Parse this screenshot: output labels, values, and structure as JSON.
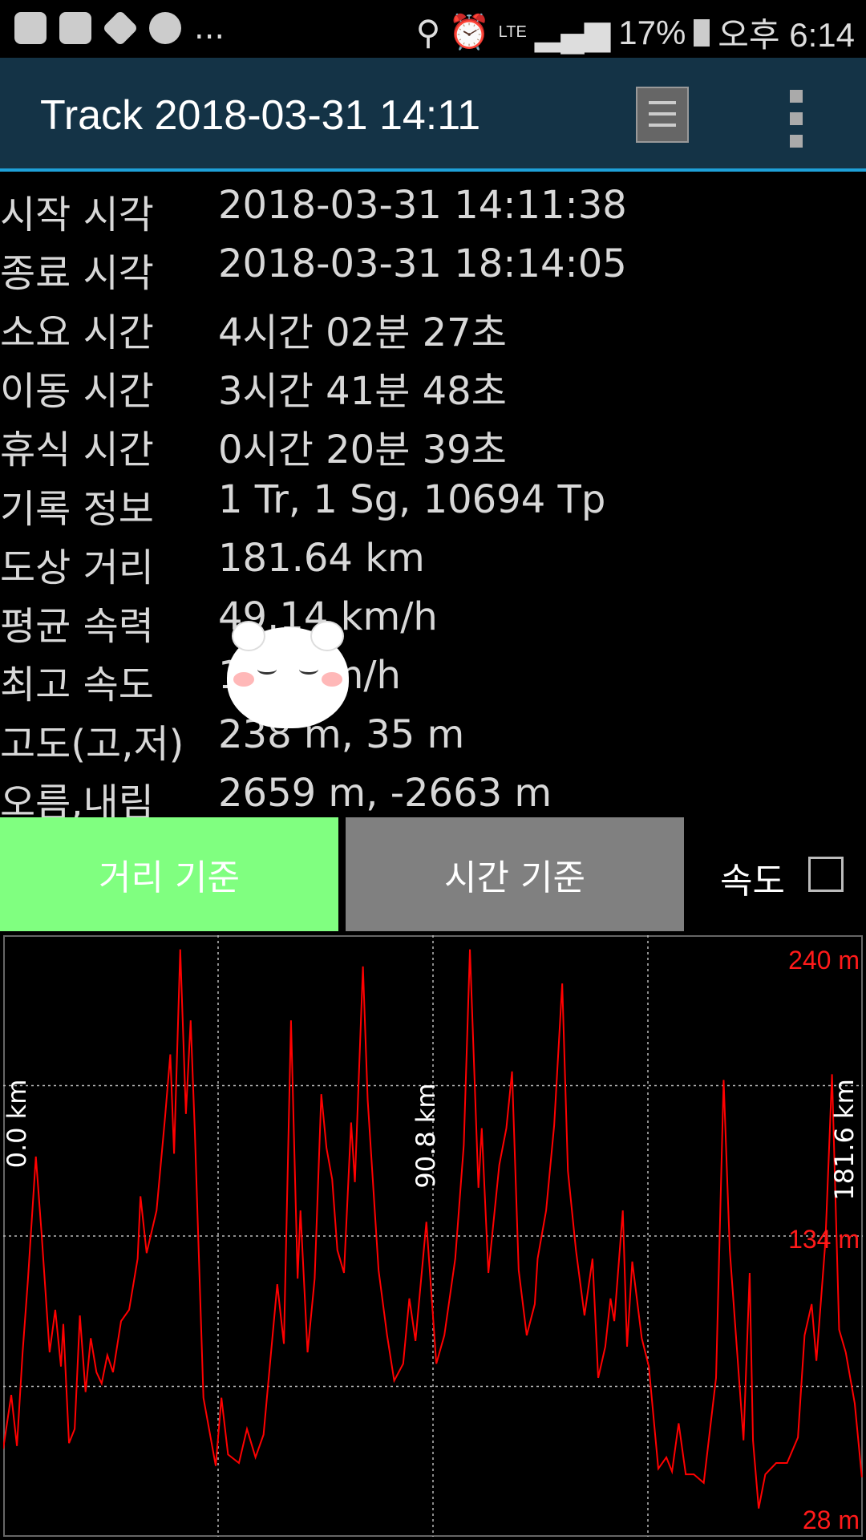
{
  "status_bar": {
    "left_icons": [
      "uplus-icon",
      "gallery-icon",
      "navigation-icon",
      "kakaotalk-icon"
    ],
    "more": "...",
    "right": {
      "network": "LTE",
      "battery": "17%",
      "time": "오후 6:14"
    }
  },
  "app_bar": {
    "title": "Track 2018-03-31 14:11",
    "list_icon": "list-icon",
    "overflow_icon": "more-vert-icon"
  },
  "info": [
    {
      "label": "시작 시각",
      "value": "2018-03-31 14:11:38"
    },
    {
      "label": "종료 시각",
      "value": "2018-03-31 18:14:05"
    },
    {
      "label": "소요 시간",
      "value": "4시간 02분 27초"
    },
    {
      "label": "이동 시간",
      "value": "3시간 41분 48초"
    },
    {
      "label": "휴식 시간",
      "value": "0시간 20분 39초"
    },
    {
      "label": "기록 정보",
      "value": "1 Tr, 1 Sg, 10694 Tp"
    },
    {
      "label": "도상 거리",
      "value": "181.64 km"
    },
    {
      "label": "평균 속력",
      "value": "49.14 km/h"
    },
    {
      "label": "최고 속도",
      "value": "1     km/h"
    },
    {
      "label": "고도(고,저)",
      "value": "238 m, 35 m"
    },
    {
      "label": "오름,내림",
      "value": "2659 m, -2663 m"
    }
  ],
  "buttons": {
    "distance": "거리 기준",
    "time": "시간 기준",
    "speed_label": "속도",
    "speed_checked": false,
    "distance_color": "#80ff80",
    "time_color": "#808080"
  },
  "chart_data": {
    "type": "line",
    "xlabel": "",
    "ylabel": "",
    "xlim": [
      0,
      181.6
    ],
    "ylim": [
      28,
      240
    ],
    "x_tick_labels": [
      "0.0 km",
      "90.8 km",
      "181.6 km"
    ],
    "y_tick_labels": [
      "240 m",
      "134 m",
      "28 m"
    ],
    "grid": true,
    "series_color": "#ff0000",
    "x": [
      0,
      1.7,
      2.9,
      4.1,
      5.2,
      6.9,
      8.1,
      9.8,
      11.0,
      12.2,
      12.7,
      13.9,
      15.1,
      16.2,
      17.4,
      18.5,
      19.7,
      20.8,
      22.0,
      23.2,
      24.9,
      26.6,
      28.4,
      29.0,
      30.3,
      32.4,
      34.2,
      35.3,
      36.1,
      37.4,
      38.6,
      39.6,
      40.5,
      42.3,
      44.9,
      46.1,
      47.5,
      49.8,
      51.5,
      53.3,
      55.0,
      57.9,
      59.3,
      60.8,
      62.2,
      62.8,
      64.3,
      65.8,
      67.2,
      68.3,
      69.5,
      70.6,
      72.0,
      73.5,
      74.3,
      76.0,
      77.0,
      79.3,
      81.1,
      82.6,
      84.5,
      85.8,
      87.1,
      89.4,
      91.5,
      93.2,
      95.5,
      97.3,
      98.6,
      100.4,
      101.1,
      102.5,
      104.8,
      106.3,
      107.5,
      108.9,
      110.6,
      112.3,
      112.9,
      114.7,
      116.4,
      118.1,
      119.3,
      121.0,
      122.8,
      124.5,
      125.7,
      127.2,
      128.3,
      129.1,
      130.9,
      131.8,
      132.9,
      134.9,
      136.4,
      138.4,
      140.1,
      141.3,
      142.7,
      144.2,
      145.9,
      148.0,
      150.6,
      152.2,
      153.5,
      156.4,
      157.7,
      158.4,
      159.6,
      161.0,
      163.3,
      165.6,
      167.9,
      169.3,
      170.8,
      171.8,
      173.7,
      175.1,
      176.6,
      178.0,
      179.9,
      181.4
    ],
    "y": [
      59,
      78,
      60,
      93,
      118,
      162,
      135,
      93,
      108,
      88,
      103,
      61,
      66,
      106,
      79,
      98,
      86,
      82,
      92,
      86,
      104,
      108,
      126,
      148,
      128,
      143,
      176,
      198,
      163,
      235,
      177,
      210,
      170,
      77,
      53,
      77,
      57,
      54,
      66,
      56,
      64,
      117,
      96,
      210,
      119,
      143,
      93,
      119,
      184,
      165,
      154,
      129,
      121,
      174,
      153,
      229,
      182,
      122,
      99,
      83,
      89,
      112,
      97,
      139,
      89,
      99,
      126,
      166,
      235,
      151,
      172,
      121,
      159,
      172,
      192,
      122,
      99,
      110,
      126,
      143,
      173,
      223,
      157,
      129,
      106,
      126,
      84,
      95,
      112,
      104,
      143,
      95,
      125,
      98,
      88,
      52,
      56,
      51,
      68,
      50,
      50,
      47,
      84,
      189,
      129,
      62,
      121,
      62,
      38,
      50,
      54,
      54,
      63,
      99,
      110,
      90,
      132,
      191,
      101,
      93,
      75,
      49
    ]
  }
}
